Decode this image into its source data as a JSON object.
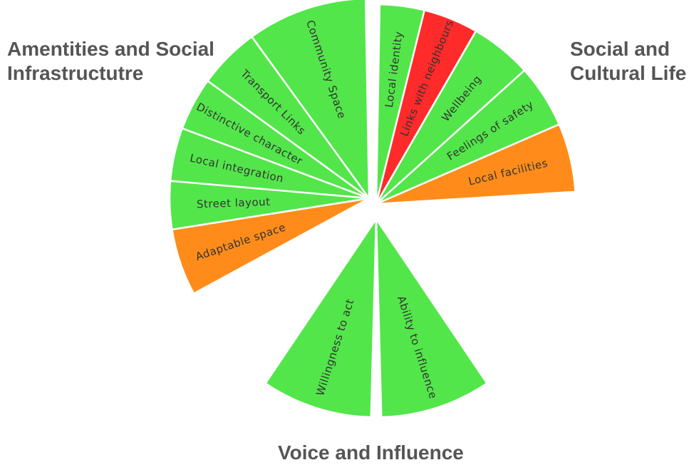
{
  "titles": {
    "left": "Amentities and Social\nInfrastructutre",
    "right": "Social and\nCultural Life",
    "bottom": "Voice and Influence"
  },
  "colors": {
    "green": "#52e64a",
    "orange": "#ff8c1a",
    "red": "#ff2a2a",
    "stroke": "#ffffff"
  },
  "segments": [
    {
      "label": "Local identity",
      "status": "green"
    },
    {
      "label": "Links with neighbours",
      "status": "red"
    },
    {
      "label": "Wellbeing",
      "status": "green"
    },
    {
      "label": "Feelings of safety",
      "status": "green"
    },
    {
      "label": "Local facilities",
      "status": "orange"
    },
    {
      "label": "Ability to influence",
      "status": "green"
    },
    {
      "label": "Willingness to act",
      "status": "green"
    },
    {
      "label": "Adaptable space",
      "status": "orange"
    },
    {
      "label": "Street layout",
      "status": "green"
    },
    {
      "label": "Local integration",
      "status": "green"
    },
    {
      "label": "Distinctive character",
      "status": "green"
    },
    {
      "label": "Transport Links",
      "status": "green"
    },
    {
      "label": "Community Space",
      "status": "green"
    }
  ]
}
